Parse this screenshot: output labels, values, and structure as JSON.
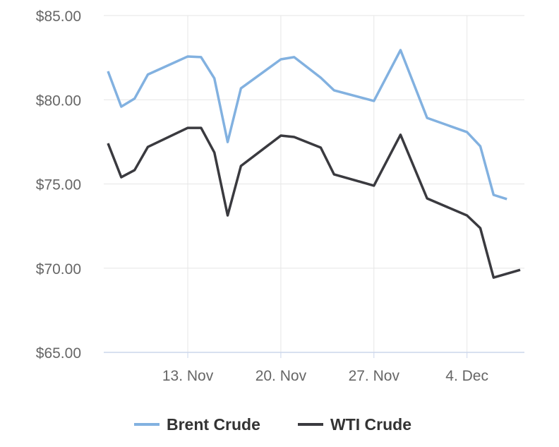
{
  "chart_data": {
    "type": "line",
    "xlim": [
      "7. Nov",
      "8. Dec"
    ],
    "xticks": [
      "13. Nov",
      "20. Nov",
      "27. Nov",
      "4. Dec"
    ],
    "ylim": [
      65,
      85
    ],
    "yticks": [
      {
        "value": 65,
        "label": "$65.00"
      },
      {
        "value": 70,
        "label": "$70.00"
      },
      {
        "value": 75,
        "label": "$75.00"
      },
      {
        "value": 80,
        "label": "$80.00"
      },
      {
        "value": 85,
        "label": "$85.00"
      }
    ],
    "grid": true,
    "legend": "bottom",
    "series": [
      {
        "name": "Brent Crude",
        "color": "#82b1e0",
        "x": [
          "7. Nov",
          "8. Nov",
          "9. Nov",
          "10. Nov",
          "13. Nov",
          "14. Nov",
          "15. Nov",
          "16. Nov",
          "17. Nov",
          "20. Nov",
          "21. Nov",
          "23. Nov",
          "24. Nov",
          "27. Nov",
          "29. Nov",
          "1. Dec",
          "4. Dec",
          "5. Dec",
          "6. Dec",
          "7. Dec"
        ],
        "values": [
          81.69,
          79.59,
          80.07,
          81.5,
          82.57,
          82.53,
          81.27,
          77.49,
          80.68,
          82.4,
          82.53,
          81.31,
          80.56,
          79.93,
          82.95,
          78.92,
          78.08,
          77.24,
          74.35,
          74.1
        ]
      },
      {
        "name": "WTI Crude",
        "color": "#3a3a3f",
        "x": [
          "7. Nov",
          "8. Nov",
          "9. Nov",
          "10. Nov",
          "13. Nov",
          "14. Nov",
          "15. Nov",
          "16. Nov",
          "17. Nov",
          "20. Nov",
          "21. Nov",
          "23. Nov",
          "24. Nov",
          "27. Nov",
          "29. Nov",
          "1. Dec",
          "4. Dec",
          "5. Dec",
          "6. Dec",
          "8. Dec"
        ],
        "values": [
          77.41,
          75.4,
          75.82,
          77.2,
          78.33,
          78.33,
          76.87,
          73.13,
          76.07,
          77.87,
          77.79,
          77.16,
          75.57,
          74.9,
          77.92,
          74.14,
          73.13,
          72.38,
          69.44,
          69.9
        ]
      }
    ]
  }
}
